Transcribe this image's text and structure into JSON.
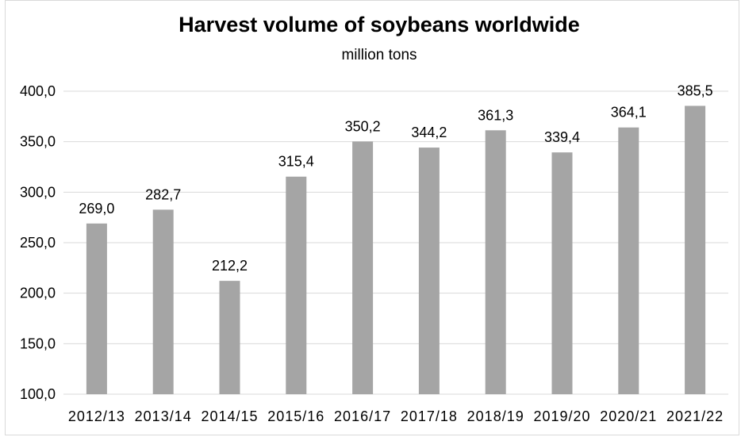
{
  "chart_data": {
    "type": "bar",
    "title": "Harvest volume of soybeans worldwide",
    "subtitle": "million tons",
    "xlabel": "",
    "ylabel": "",
    "categories": [
      "2012/13",
      "2013/14",
      "2014/15",
      "2015/16",
      "2016/17",
      "2017/18",
      "2018/19",
      "2019/20",
      "2020/21",
      "2021/22"
    ],
    "values": [
      269.0,
      282.7,
      212.2,
      315.4,
      350.2,
      344.2,
      361.3,
      339.4,
      364.1,
      385.5
    ],
    "value_labels": [
      "269,0",
      "282,7",
      "212,2",
      "315,4",
      "350,2",
      "344,2",
      "361,3",
      "339,4",
      "364,1",
      "385,5"
    ],
    "ylim": [
      100,
      400
    ],
    "yticks": [
      100,
      150,
      200,
      250,
      300,
      350,
      400
    ],
    "ytick_labels": [
      "100,0",
      "150,0",
      "200,0",
      "250,0",
      "300,0",
      "350,0",
      "400,0"
    ],
    "grid": true,
    "legend": "none",
    "bar_color": "#a5a5a5",
    "grid_color": "#d9d9d9"
  }
}
